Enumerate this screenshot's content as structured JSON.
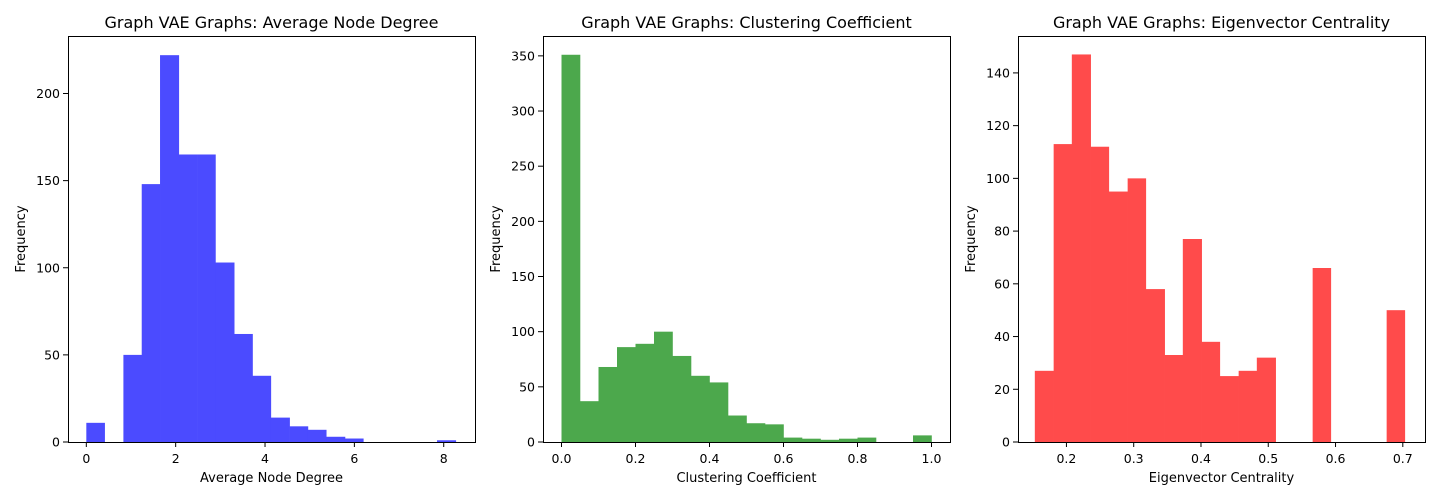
{
  "chart_data": [
    {
      "type": "bar",
      "title": "Graph VAE Graphs: Average Node Degree",
      "xlabel": "Average Node Degree",
      "ylabel": "Frequency",
      "color": "#4b4bff",
      "xlim": [
        -0.41,
        8.7
      ],
      "ylim": [
        0,
        233
      ],
      "xticks": [
        0,
        2,
        4,
        6,
        8
      ],
      "yticks": [
        0,
        50,
        100,
        150,
        200
      ],
      "bins": [
        {
          "x0": 0.0,
          "x1": 0.41,
          "count": 11
        },
        {
          "x0": 0.41,
          "x1": 0.83,
          "count": 0
        },
        {
          "x0": 0.83,
          "x1": 1.24,
          "count": 50
        },
        {
          "x0": 1.24,
          "x1": 1.65,
          "count": 148
        },
        {
          "x0": 1.65,
          "x1": 2.07,
          "count": 222
        },
        {
          "x0": 2.07,
          "x1": 2.48,
          "count": 165
        },
        {
          "x0": 2.48,
          "x1": 2.89,
          "count": 165
        },
        {
          "x0": 2.89,
          "x1": 3.31,
          "count": 103
        },
        {
          "x0": 3.31,
          "x1": 3.72,
          "count": 62
        },
        {
          "x0": 3.72,
          "x1": 4.13,
          "count": 38
        },
        {
          "x0": 4.13,
          "x1": 4.55,
          "count": 14
        },
        {
          "x0": 4.55,
          "x1": 4.96,
          "count": 9
        },
        {
          "x0": 4.96,
          "x1": 5.37,
          "count": 7
        },
        {
          "x0": 5.37,
          "x1": 5.79,
          "count": 3
        },
        {
          "x0": 5.79,
          "x1": 6.2,
          "count": 2
        },
        {
          "x0": 6.2,
          "x1": 6.61,
          "count": 0
        },
        {
          "x0": 6.61,
          "x1": 7.03,
          "count": 0
        },
        {
          "x0": 7.03,
          "x1": 7.44,
          "count": 0
        },
        {
          "x0": 7.44,
          "x1": 7.85,
          "count": 0
        },
        {
          "x0": 7.85,
          "x1": 8.27,
          "count": 1
        }
      ]
    },
    {
      "type": "bar",
      "title": "Graph VAE Graphs: Clustering Coefficient",
      "xlabel": "Clustering Coefficient",
      "ylabel": "Frequency",
      "color": "#4ca84c",
      "xlim": [
        -0.05,
        1.05
      ],
      "ylim": [
        0,
        368
      ],
      "xticks": [
        0.0,
        0.2,
        0.4,
        0.6,
        0.8,
        1.0
      ],
      "xtick_labels": [
        "0.0",
        "0.2",
        "0.4",
        "0.6",
        "0.8",
        "1.0"
      ],
      "yticks": [
        0,
        50,
        100,
        150,
        200,
        250,
        300,
        350
      ],
      "bins": [
        {
          "x0": 0.0,
          "x1": 0.05,
          "count": 351
        },
        {
          "x0": 0.05,
          "x1": 0.1,
          "count": 37
        },
        {
          "x0": 0.1,
          "x1": 0.15,
          "count": 68
        },
        {
          "x0": 0.15,
          "x1": 0.2,
          "count": 86
        },
        {
          "x0": 0.2,
          "x1": 0.25,
          "count": 89
        },
        {
          "x0": 0.25,
          "x1": 0.3,
          "count": 100
        },
        {
          "x0": 0.3,
          "x1": 0.35,
          "count": 78
        },
        {
          "x0": 0.35,
          "x1": 0.4,
          "count": 60
        },
        {
          "x0": 0.4,
          "x1": 0.45,
          "count": 54
        },
        {
          "x0": 0.45,
          "x1": 0.5,
          "count": 24
        },
        {
          "x0": 0.5,
          "x1": 0.55,
          "count": 17
        },
        {
          "x0": 0.55,
          "x1": 0.6,
          "count": 16
        },
        {
          "x0": 0.6,
          "x1": 0.65,
          "count": 4
        },
        {
          "x0": 0.65,
          "x1": 0.7,
          "count": 3
        },
        {
          "x0": 0.7,
          "x1": 0.75,
          "count": 2
        },
        {
          "x0": 0.75,
          "x1": 0.8,
          "count": 3
        },
        {
          "x0": 0.8,
          "x1": 0.85,
          "count": 4
        },
        {
          "x0": 0.85,
          "x1": 0.9,
          "count": 0
        },
        {
          "x0": 0.9,
          "x1": 0.95,
          "count": 0
        },
        {
          "x0": 0.95,
          "x1": 1.0,
          "count": 6
        }
      ]
    },
    {
      "type": "bar",
      "title": "Graph VAE Graphs: Eigenvector Centrality",
      "xlabel": "Eigenvector Centrality",
      "ylabel": "Frequency",
      "color": "#ff4b4b",
      "xlim": [
        0.128,
        0.733
      ],
      "ylim": [
        0,
        154
      ],
      "xticks": [
        0.2,
        0.3,
        0.4,
        0.5,
        0.6,
        0.7
      ],
      "xtick_labels": [
        "0.2",
        "0.3",
        "0.4",
        "0.5",
        "0.6",
        "0.7"
      ],
      "yticks": [
        0,
        20,
        40,
        60,
        80,
        100,
        120,
        140
      ],
      "bins": [
        {
          "x0": 0.153,
          "x1": 0.181,
          "count": 27
        },
        {
          "x0": 0.181,
          "x1": 0.208,
          "count": 113
        },
        {
          "x0": 0.208,
          "x1": 0.236,
          "count": 147
        },
        {
          "x0": 0.236,
          "x1": 0.263,
          "count": 112
        },
        {
          "x0": 0.263,
          "x1": 0.291,
          "count": 95
        },
        {
          "x0": 0.291,
          "x1": 0.318,
          "count": 100
        },
        {
          "x0": 0.318,
          "x1": 0.346,
          "count": 58
        },
        {
          "x0": 0.346,
          "x1": 0.373,
          "count": 33
        },
        {
          "x0": 0.373,
          "x1": 0.401,
          "count": 77
        },
        {
          "x0": 0.401,
          "x1": 0.428,
          "count": 38
        },
        {
          "x0": 0.428,
          "x1": 0.456,
          "count": 25
        },
        {
          "x0": 0.456,
          "x1": 0.483,
          "count": 27
        },
        {
          "x0": 0.483,
          "x1": 0.511,
          "count": 32
        },
        {
          "x0": 0.511,
          "x1": 0.538,
          "count": 0
        },
        {
          "x0": 0.538,
          "x1": 0.566,
          "count": 0
        },
        {
          "x0": 0.566,
          "x1": 0.593,
          "count": 66
        },
        {
          "x0": 0.593,
          "x1": 0.621,
          "count": 0
        },
        {
          "x0": 0.621,
          "x1": 0.648,
          "count": 0
        },
        {
          "x0": 0.648,
          "x1": 0.676,
          "count": 0
        },
        {
          "x0": 0.676,
          "x1": 0.703,
          "count": 50
        }
      ]
    }
  ]
}
